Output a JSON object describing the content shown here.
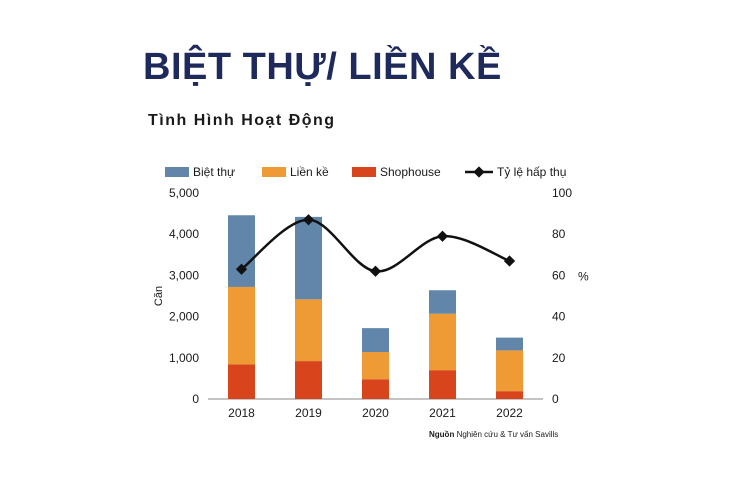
{
  "title": "BIỆT THỰ/ LIỀN KỀ",
  "subtitle": "Tình Hình Hoạt Động",
  "source_prefix": "Nguồn",
  "source_text": "Nghiên cứu & Tư vấn Savills",
  "chart_data": {
    "type": "bar",
    "stacked": true,
    "categories": [
      "2018",
      "2019",
      "2020",
      "2021",
      "2022"
    ],
    "series": [
      {
        "name": "Shophouse",
        "kind": "bar",
        "color": "#d8441c",
        "values": [
          840,
          920,
          480,
          700,
          190
        ]
      },
      {
        "name": "Liền kề",
        "kind": "bar",
        "color": "#ee9a35",
        "values": [
          1880,
          1500,
          660,
          1370,
          990
        ]
      },
      {
        "name": "Biệt thự",
        "kind": "bar",
        "color": "#6186a9",
        "values": [
          1740,
          2000,
          580,
          570,
          310
        ]
      },
      {
        "name": "Tỷ lệ hấp thụ",
        "kind": "line",
        "axis": "right",
        "color": "#111111",
        "values": [
          63,
          87,
          62,
          79,
          67
        ]
      }
    ],
    "legend_order": [
      "Biệt thự",
      "Liền kề",
      "Shophouse",
      "Tỷ lệ hấp thụ"
    ],
    "ylabel": "Căn",
    "y2label": "%",
    "ylim": [
      0,
      5000
    ],
    "y2lim": [
      0,
      100
    ],
    "yticks": [
      "0",
      "1,000",
      "2,000",
      "3,000",
      "4,000",
      "5,000"
    ],
    "y2ticks": [
      "0",
      "20",
      "40",
      "60",
      "80",
      "100"
    ],
    "legend_position": "top",
    "grid": false
  }
}
